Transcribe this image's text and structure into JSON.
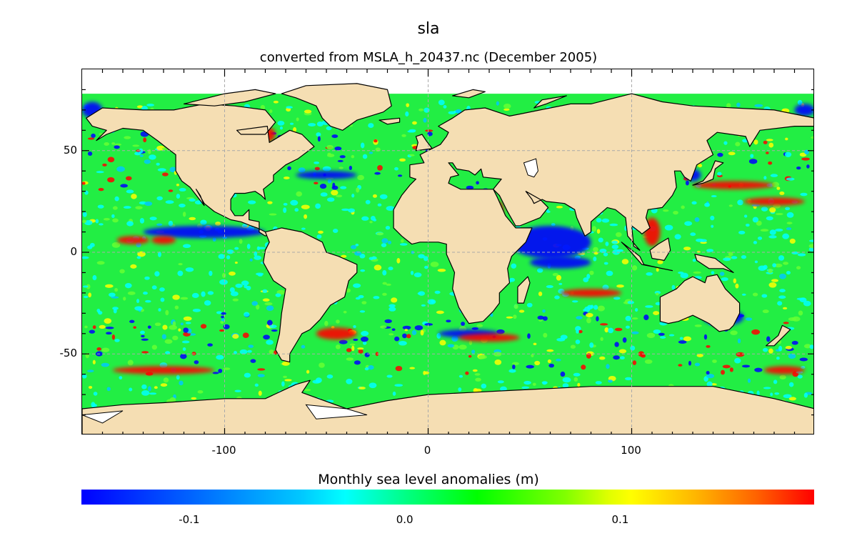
{
  "header": {
    "title": "sla",
    "subtitle": "converted from MSLA_h_20437.nc (December 2005)"
  },
  "map": {
    "projection": "equirectangular",
    "lon_range": [
      -170,
      190
    ],
    "lat_range": [
      -90,
      90
    ],
    "grid": true,
    "land_color": "#f5deb3",
    "no_data_color": "#ffffff",
    "ocean_base_color": "#22ee44",
    "y_ticks": [
      {
        "value": 50,
        "label": "50"
      },
      {
        "value": 0,
        "label": "0"
      },
      {
        "value": -50,
        "label": "-50"
      }
    ],
    "x_ticks": [
      {
        "value": -100,
        "label": "-100"
      },
      {
        "value": 0,
        "label": "0"
      },
      {
        "value": 100,
        "label": "100"
      }
    ],
    "anomaly_features": [
      {
        "lon": -110,
        "lat": 10,
        "kind": "negative",
        "rx": 30,
        "ry": 3
      },
      {
        "lon": -145,
        "lat": 6,
        "kind": "positive",
        "rx": 8,
        "ry": 2
      },
      {
        "lon": -130,
        "lat": 6,
        "kind": "positive",
        "rx": 6,
        "ry": 2
      },
      {
        "lon": 60,
        "lat": 5,
        "kind": "negative",
        "rx": 20,
        "ry": 8
      },
      {
        "lon": 65,
        "lat": -5,
        "kind": "negative",
        "rx": 15,
        "ry": 3
      },
      {
        "lon": 110,
        "lat": 10,
        "kind": "positive",
        "rx": 4,
        "ry": 7
      },
      {
        "lon": 35,
        "lat": 20,
        "kind": "positive",
        "rx": 2,
        "ry": 5
      },
      {
        "lon": 150,
        "lat": 33,
        "kind": "positive",
        "rx": 20,
        "ry": 2
      },
      {
        "lon": 170,
        "lat": 25,
        "kind": "positive",
        "rx": 15,
        "ry": 2
      },
      {
        "lon": -50,
        "lat": 38,
        "kind": "negative",
        "rx": 15,
        "ry": 2
      },
      {
        "lon": -45,
        "lat": -40,
        "kind": "positive",
        "rx": 10,
        "ry": 3
      },
      {
        "lon": 20,
        "lat": -40,
        "kind": "negative",
        "rx": 15,
        "ry": 2
      },
      {
        "lon": 30,
        "lat": -42,
        "kind": "positive",
        "rx": 15,
        "ry": 2
      },
      {
        "lon": -130,
        "lat": -58,
        "kind": "positive",
        "rx": 25,
        "ry": 2
      },
      {
        "lon": 145,
        "lat": -32,
        "kind": "negative",
        "rx": 10,
        "ry": 4
      },
      {
        "lon": 175,
        "lat": -58,
        "kind": "positive",
        "rx": 10,
        "ry": 2
      },
      {
        "lon": -165,
        "lat": 70,
        "kind": "negative",
        "rx": 5,
        "ry": 4
      },
      {
        "lon": 185,
        "lat": 70,
        "kind": "negative",
        "rx": 5,
        "ry": 3
      },
      {
        "lon": 130,
        "lat": 38,
        "kind": "negative",
        "rx": 4,
        "ry": 3
      },
      {
        "lon": -80,
        "lat": 58,
        "kind": "positive",
        "rx": 5,
        "ry": 4
      },
      {
        "lon": 80,
        "lat": -20,
        "kind": "positive",
        "rx": 15,
        "ry": 2
      }
    ]
  },
  "colorbar": {
    "title": "Monthly sea level anomalies (m)",
    "range": [
      -0.15,
      0.19
    ],
    "ticks": [
      {
        "value": -0.1,
        "label": "-0.1"
      },
      {
        "value": 0.0,
        "label": "0.0"
      },
      {
        "value": 0.1,
        "label": "0.1"
      }
    ],
    "colors": [
      "#0000ff",
      "#00ffff",
      "#00ff00",
      "#ffff00",
      "#ff0000"
    ]
  }
}
